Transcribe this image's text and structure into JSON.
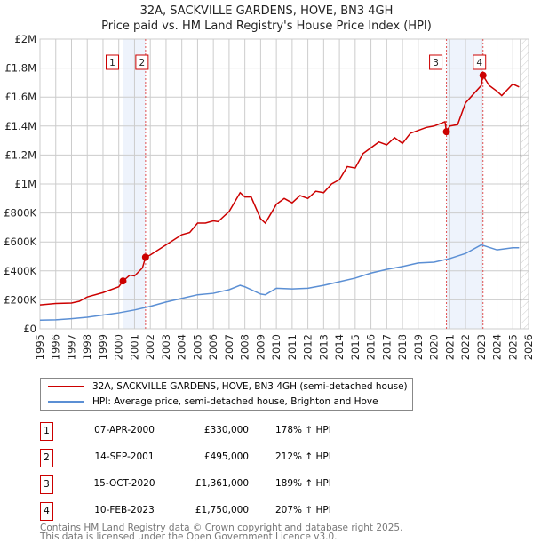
{
  "title": "32A, SACKVILLE GARDENS, HOVE, BN3 4GH",
  "subtitle": "Price paid vs. HM Land Registry's House Price Index (HPI)",
  "chart_data": {
    "type": "line",
    "xlim": [
      1995,
      2026
    ],
    "ylim": [
      0,
      2000000
    ],
    "y_ticks": [
      {
        "v": 0,
        "label": "£0"
      },
      {
        "v": 200000,
        "label": "£200K"
      },
      {
        "v": 400000,
        "label": "£400K"
      },
      {
        "v": 600000,
        "label": "£600K"
      },
      {
        "v": 800000,
        "label": "£800K"
      },
      {
        "v": 1000000,
        "label": "£1M"
      },
      {
        "v": 1200000,
        "label": "£1.2M"
      },
      {
        "v": 1400000,
        "label": "£1.4M"
      },
      {
        "v": 1600000,
        "label": "£1.6M"
      },
      {
        "v": 1800000,
        "label": "£1.8M"
      },
      {
        "v": 2000000,
        "label": "£2M"
      }
    ],
    "x_ticks": [
      "1995",
      "1996",
      "1997",
      "1998",
      "1999",
      "2000",
      "2001",
      "2002",
      "2003",
      "2004",
      "2005",
      "2006",
      "2007",
      "2008",
      "2009",
      "2010",
      "2011",
      "2012",
      "2013",
      "2014",
      "2015",
      "2016",
      "2017",
      "2018",
      "2019",
      "2020",
      "2021",
      "2022",
      "2023",
      "2024",
      "2025",
      "2026"
    ],
    "grid": true,
    "forecast_hatch_from": 2025.5,
    "series": [
      {
        "name": "32A, SACKVILLE GARDENS, HOVE, BN3 4GH (semi-detached house)",
        "color": "#cc0000",
        "x": [
          1995,
          1996,
          1997,
          1997.5,
          1998,
          1999,
          2000,
          2000.27,
          2000.7,
          2001,
          2001.5,
          2001.7,
          2002,
          2003,
          2004,
          2004.5,
          2005,
          2005.5,
          2006,
          2006.3,
          2007,
          2007.7,
          2008,
          2008.4,
          2009,
          2009.3,
          2010,
          2010.5,
          2011,
          2011.5,
          2012,
          2012.5,
          2013,
          2013.5,
          2014,
          2014.5,
          2015,
          2015.5,
          2016,
          2016.5,
          2017,
          2017.5,
          2018,
          2018.5,
          2019,
          2019.5,
          2020,
          2020.7,
          2020.79,
          2021,
          2021.5,
          2022,
          2022.5,
          2023,
          2023.1,
          2023.5,
          2024,
          2024.3,
          2025,
          2025.4
        ],
        "y": [
          165000,
          175000,
          178000,
          190000,
          220000,
          250000,
          290000,
          330000,
          370000,
          365000,
          420000,
          495000,
          510000,
          580000,
          650000,
          665000,
          730000,
          730000,
          745000,
          740000,
          810000,
          940000,
          910000,
          910000,
          760000,
          730000,
          860000,
          900000,
          870000,
          920000,
          900000,
          950000,
          940000,
          1000000,
          1030000,
          1120000,
          1110000,
          1210000,
          1250000,
          1290000,
          1270000,
          1320000,
          1280000,
          1350000,
          1370000,
          1390000,
          1400000,
          1430000,
          1361000,
          1400000,
          1410000,
          1560000,
          1620000,
          1680000,
          1750000,
          1680000,
          1640000,
          1610000,
          1690000,
          1670000
        ]
      },
      {
        "name": "HPI: Average price, semi-detached house, Brighton and Hove",
        "color": "#5b8fd4",
        "x": [
          1995,
          1996,
          1997,
          1998,
          1999,
          2000,
          2001,
          2002,
          2003,
          2004,
          2005,
          2006,
          2007,
          2007.7,
          2008,
          2009,
          2009.3,
          2010,
          2011,
          2012,
          2013,
          2014,
          2015,
          2016,
          2017,
          2018,
          2019,
          2020,
          2021,
          2022,
          2023,
          2024,
          2025,
          2025.4
        ],
        "y": [
          60000,
          62000,
          70000,
          80000,
          95000,
          110000,
          130000,
          155000,
          185000,
          210000,
          235000,
          245000,
          270000,
          300000,
          290000,
          240000,
          235000,
          280000,
          275000,
          280000,
          300000,
          325000,
          350000,
          385000,
          410000,
          430000,
          455000,
          460000,
          485000,
          520000,
          580000,
          545000,
          560000,
          560000
        ]
      }
    ],
    "sales": [
      {
        "n": "1",
        "date": "07-APR-2000",
        "x": 2000.27,
        "price": "£330,000",
        "value": 330000,
        "hpi": "178% ↑ HPI"
      },
      {
        "n": "2",
        "date": "14-SEP-2001",
        "x": 2001.7,
        "price": "£495,000",
        "value": 495000,
        "hpi": "212% ↑ HPI"
      },
      {
        "n": "3",
        "date": "15-OCT-2020",
        "x": 2020.79,
        "price": "£1,361,000",
        "value": 1361000,
        "hpi": "189% ↑ HPI"
      },
      {
        "n": "4",
        "date": "10-FEB-2023",
        "x": 2023.11,
        "price": "£1,750,000",
        "value": 1750000,
        "hpi": "207% ↑ HPI"
      }
    ]
  },
  "legend": {
    "property": "32A, SACKVILLE GARDENS, HOVE, BN3 4GH (semi-detached house)",
    "hpi": "HPI: Average price, semi-detached house, Brighton and Hove"
  },
  "footer": {
    "line1": "Contains HM Land Registry data © Crown copyright and database right 2025.",
    "line2": "This data is licensed under the Open Government Licence v3.0."
  }
}
